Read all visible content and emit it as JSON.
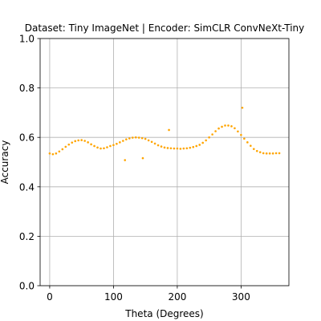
{
  "chart_data": {
    "type": "scatter",
    "title": "Dataset: Tiny ImageNet | Encoder: SimCLR ConvNeXt-Tiny",
    "xlabel": "Theta (Degrees)",
    "ylabel": "Accuracy",
    "xlim": [
      -15,
      375
    ],
    "ylim": [
      0.0,
      1.0
    ],
    "xticks": [
      0,
      100,
      200,
      300
    ],
    "yticks": [
      0.0,
      0.2,
      0.4,
      0.6,
      0.8,
      1.0
    ],
    "xtick_labels": [
      "0",
      "100",
      "200",
      "300"
    ],
    "ytick_labels": [
      "0.0",
      "0.2",
      "0.4",
      "0.6",
      "0.8",
      "1.0"
    ],
    "grid": true,
    "marker_color": "#ffa500",
    "series": [
      {
        "x": [
          0,
          5,
          10,
          15,
          20,
          25,
          30,
          35,
          40,
          45,
          50,
          55,
          60,
          65,
          70,
          75,
          80,
          85,
          90,
          95,
          100,
          105,
          110,
          115,
          120,
          125,
          130,
          135,
          140,
          145,
          150,
          155,
          160,
          165,
          170,
          175,
          180,
          185,
          190,
          195,
          200,
          205,
          210,
          215,
          220,
          225,
          230,
          235,
          240,
          245,
          250,
          255,
          260,
          265,
          270,
          275,
          280,
          285,
          290,
          295,
          300,
          305,
          310,
          315,
          320,
          325,
          330,
          335,
          340,
          345,
          350,
          355,
          360,
          118,
          146,
          187,
          302
        ],
        "y": [
          0.535,
          0.532,
          0.535,
          0.543,
          0.552,
          0.562,
          0.571,
          0.579,
          0.585,
          0.588,
          0.589,
          0.586,
          0.58,
          0.572,
          0.565,
          0.559,
          0.555,
          0.556,
          0.56,
          0.565,
          0.569,
          0.574,
          0.58,
          0.586,
          0.592,
          0.596,
          0.599,
          0.6,
          0.599,
          0.597,
          0.594,
          0.588,
          0.582,
          0.575,
          0.568,
          0.563,
          0.559,
          0.557,
          0.556,
          0.555,
          0.555,
          0.554,
          0.555,
          0.556,
          0.558,
          0.561,
          0.565,
          0.57,
          0.578,
          0.588,
          0.6,
          0.612,
          0.625,
          0.636,
          0.643,
          0.648,
          0.648,
          0.645,
          0.637,
          0.624,
          0.61,
          0.595,
          0.58,
          0.566,
          0.553,
          0.545,
          0.54,
          0.536,
          0.535,
          0.535,
          0.535,
          0.536,
          0.536,
          0.508,
          0.516,
          0.63,
          0.72
        ]
      }
    ]
  }
}
